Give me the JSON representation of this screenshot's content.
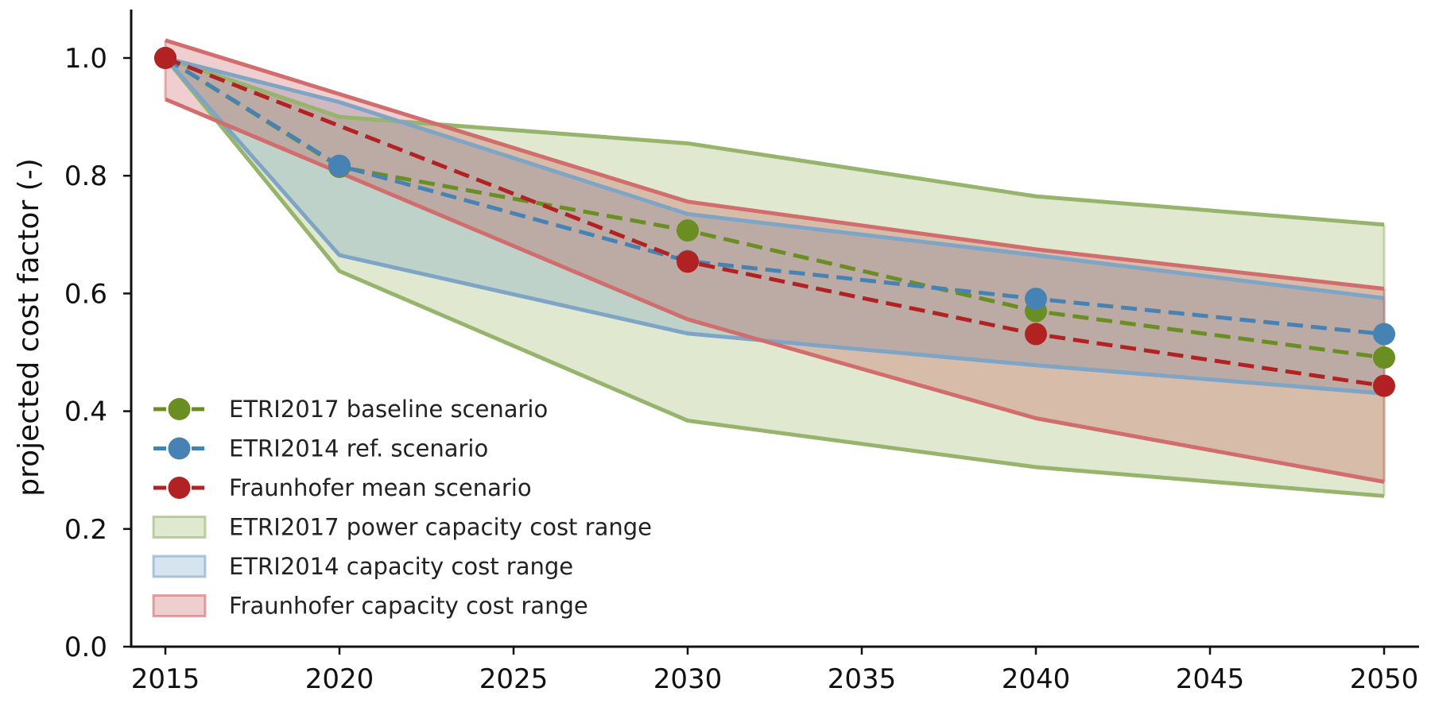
{
  "chart_data": {
    "type": "line",
    "title": "",
    "xlabel": "",
    "ylabel": "projected cost factor (-)",
    "xlim": [
      2014,
      2051
    ],
    "ylim": [
      0,
      1.08
    ],
    "x_ticks": [
      "2015",
      "2020",
      "2025",
      "2030",
      "2035",
      "2040",
      "2045",
      "2050"
    ],
    "y_ticks": [
      "0.0",
      "0.2",
      "0.4",
      "0.6",
      "0.8",
      "1.0"
    ],
    "grid": false,
    "legend_position": "lower-left",
    "series": [
      {
        "name": "ETRI2017 baseline scenario",
        "color": "#6b8e23",
        "x": [
          2015,
          2020,
          2030,
          2040,
          2050
        ],
        "values": [
          1.0,
          0.815,
          0.707,
          0.57,
          0.491
        ]
      },
      {
        "name": "ETRI2014 ref. scenario",
        "color": "#4682b4",
        "x": [
          2015,
          2020,
          2030,
          2040,
          2050
        ],
        "values": [
          1.0,
          0.817,
          0.655,
          0.591,
          0.531
        ]
      },
      {
        "name": "Fraunhofer mean scenario",
        "color": "#b22222",
        "x": [
          2015,
          2030,
          2040,
          2050
        ],
        "values": [
          1.0,
          0.654,
          0.531,
          0.443
        ]
      }
    ],
    "ranges": [
      {
        "name": "ETRI2017 power capacity cost range",
        "fill": "#e1e8d0",
        "edge": "#97b46c",
        "x": [
          2015,
          2020,
          2030,
          2040,
          2050
        ],
        "upper": [
          1.0,
          0.9,
          0.855,
          0.765,
          0.717
        ],
        "lower": [
          1.0,
          0.638,
          0.384,
          0.305,
          0.256
        ]
      },
      {
        "name": "ETRI2014 capacity cost range",
        "fill": "#4682b4",
        "edge": "#7ea4c6",
        "x": [
          2015,
          2020,
          2030,
          2040,
          2050
        ],
        "upper": [
          1.0,
          0.925,
          0.735,
          0.665,
          0.592
        ],
        "lower": [
          1.0,
          0.665,
          0.532,
          0.478,
          0.43
        ]
      },
      {
        "name": "Fraunhofer capacity cost range",
        "fill": "#b22222",
        "edge": "#d16d6d",
        "x": [
          2015,
          2030,
          2040,
          2050
        ],
        "upper": [
          1.03,
          0.756,
          0.675,
          0.608
        ],
        "lower": [
          0.93,
          0.556,
          0.388,
          0.28
        ]
      }
    ]
  }
}
